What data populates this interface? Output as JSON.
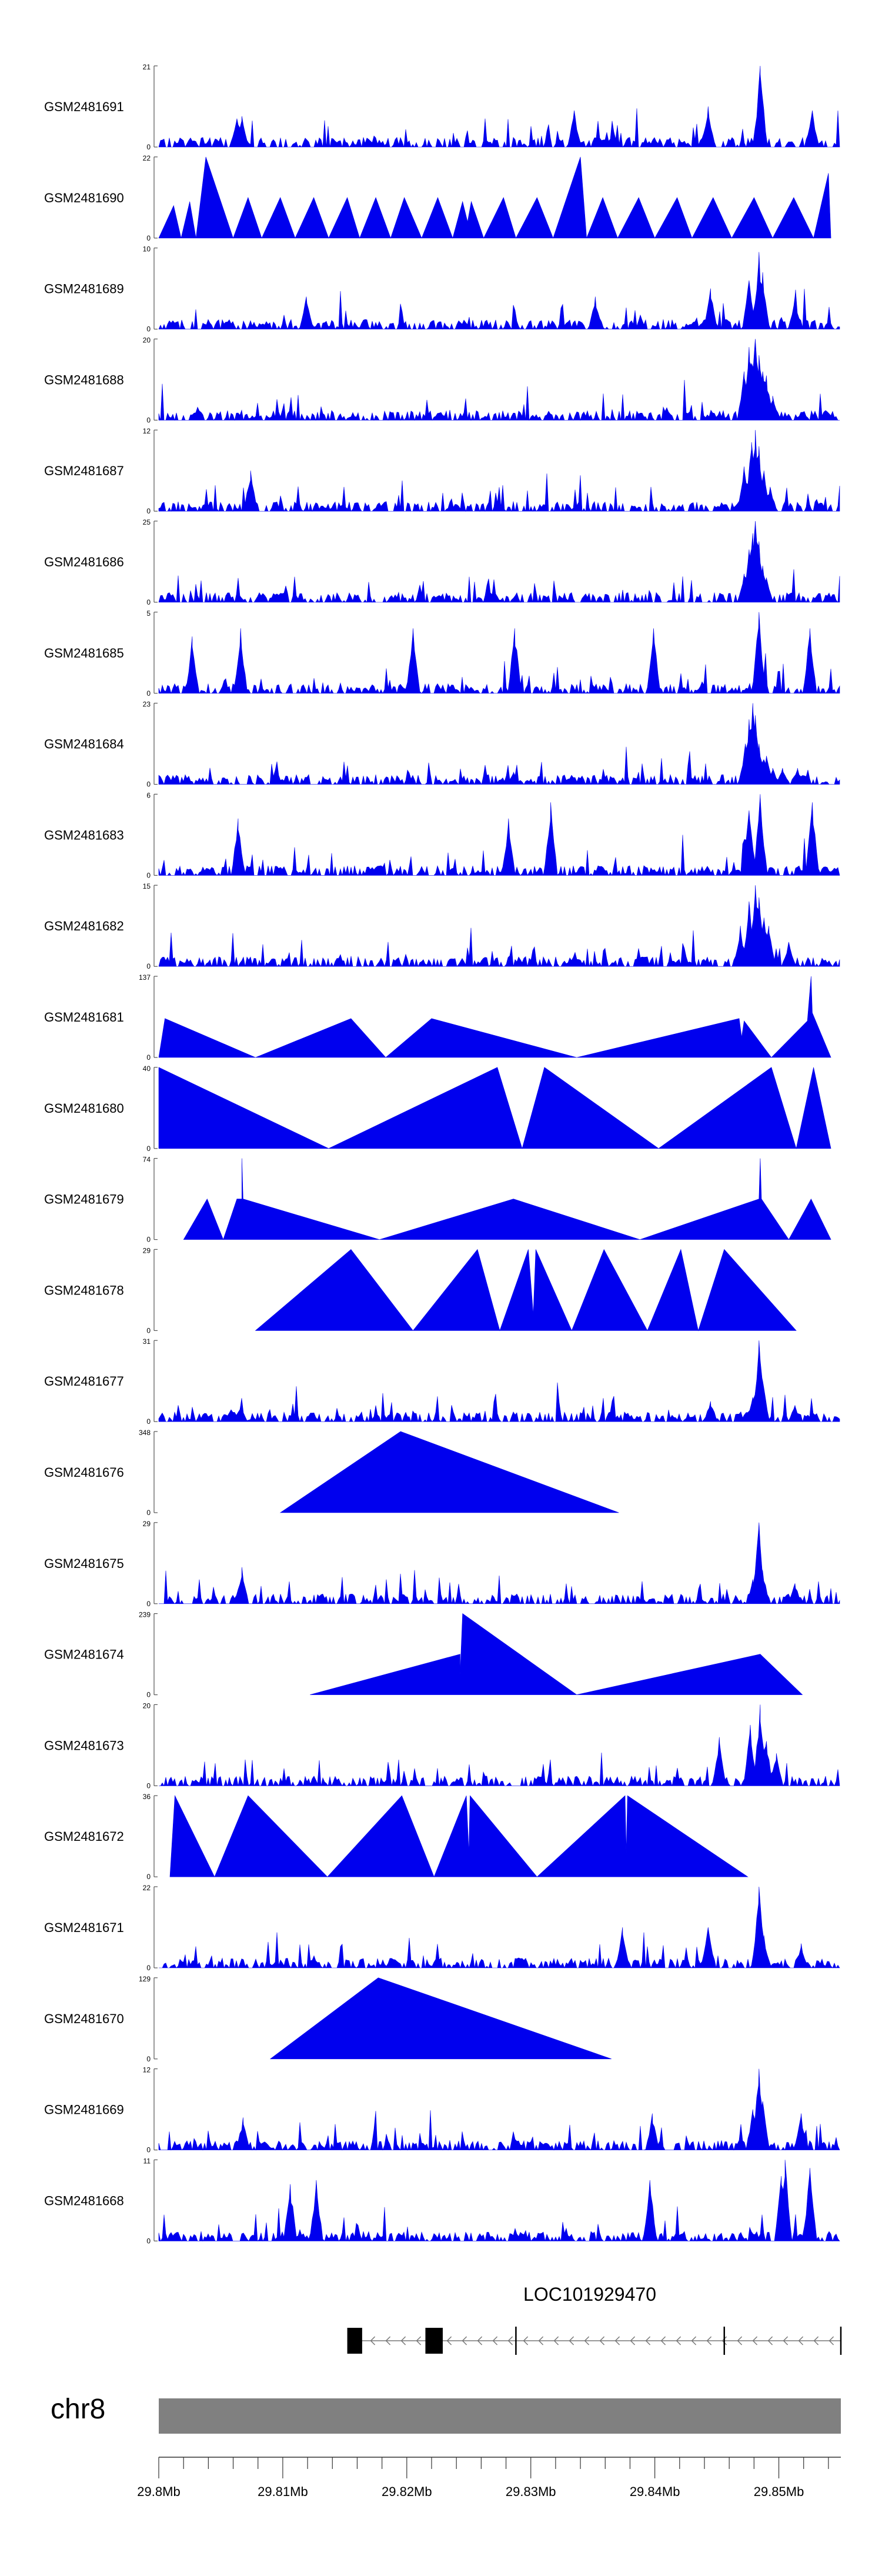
{
  "chart_data": {
    "type": "area",
    "title": "",
    "chromosome": "chr8",
    "gene": "LOC101929470",
    "xlim": [
      29.8,
      29.855
    ],
    "x_ticks": [
      29.8,
      29.81,
      29.82,
      29.83,
      29.84,
      29.85
    ],
    "x_tick_labels": [
      "29.8Mb",
      "29.81Mb",
      "29.82Mb",
      "29.83Mb",
      "29.84Mb",
      "29.85Mb"
    ],
    "tracks": [
      {
        "name": "GSM2481691",
        "ymax": 21,
        "kind": "dense",
        "points": [
          [
            29.8063,
            0.35
          ],
          [
            29.8067,
            0.38
          ],
          [
            29.8335,
            0.45
          ],
          [
            29.8443,
            0.5
          ],
          [
            29.8485,
            1.0
          ],
          [
            29.8527,
            0.45
          ]
        ]
      },
      {
        "name": "GSM2481690",
        "ymax": 22,
        "kind": "sparse",
        "points": [
          [
            29.8,
            0
          ],
          [
            29.8012,
            0.4
          ],
          [
            29.8018,
            0
          ],
          [
            29.8025,
            0.45
          ],
          [
            29.803,
            0
          ],
          [
            29.8038,
            1.0
          ],
          [
            29.806,
            0
          ],
          [
            29.8072,
            0.5
          ],
          [
            29.8083,
            0
          ],
          [
            29.8098,
            0.5
          ],
          [
            29.811,
            0
          ],
          [
            29.8125,
            0.5
          ],
          [
            29.8137,
            0
          ],
          [
            29.8152,
            0.5
          ],
          [
            29.8162,
            0
          ],
          [
            29.8175,
            0.5
          ],
          [
            29.8187,
            0
          ],
          [
            29.8198,
            0.5
          ],
          [
            29.8212,
            0
          ],
          [
            29.8225,
            0.5
          ],
          [
            29.8237,
            0
          ],
          [
            29.8245,
            0.45
          ],
          [
            29.8249,
            0.2
          ],
          [
            29.8252,
            0.45
          ],
          [
            29.8262,
            0
          ],
          [
            29.8278,
            0.5
          ],
          [
            29.8288,
            0
          ],
          [
            29.8305,
            0.5
          ],
          [
            29.8318,
            0
          ],
          [
            29.834,
            1.0
          ],
          [
            29.8345,
            0
          ],
          [
            29.8358,
            0.5
          ],
          [
            29.837,
            0
          ],
          [
            29.8387,
            0.5
          ],
          [
            29.84,
            0
          ],
          [
            29.8418,
            0.5
          ],
          [
            29.843,
            0
          ],
          [
            29.8447,
            0.5
          ],
          [
            29.8462,
            0
          ],
          [
            29.848,
            0.5
          ],
          [
            29.8495,
            0
          ],
          [
            29.8512,
            0.5
          ],
          [
            29.8528,
            0
          ],
          [
            29.854,
            0.8
          ],
          [
            29.8542,
            0
          ]
        ]
      },
      {
        "name": "GSM2481689",
        "ymax": 10,
        "kind": "dense",
        "points": [
          [
            29.8119,
            0.4
          ],
          [
            29.8352,
            0.4
          ],
          [
            29.8445,
            0.5
          ],
          [
            29.8476,
            0.6
          ],
          [
            29.8484,
            0.95
          ],
          [
            29.8487,
            0.7
          ],
          [
            29.8513,
            0.4
          ]
        ]
      },
      {
        "name": "GSM2481688",
        "ymax": 20,
        "kind": "dense",
        "points": [
          [
            29.8472,
            0.6
          ],
          [
            29.8476,
            0.9
          ],
          [
            29.8478,
            0.7
          ],
          [
            29.8481,
            1.0
          ],
          [
            29.8484,
            0.8
          ],
          [
            29.8487,
            0.6
          ],
          [
            29.849,
            0.55
          ],
          [
            29.8495,
            0.3
          ]
        ]
      },
      {
        "name": "GSM2481687",
        "ymax": 12,
        "kind": "dense",
        "points": [
          [
            29.8074,
            0.5
          ],
          [
            29.8472,
            0.55
          ],
          [
            29.8478,
            0.85
          ],
          [
            29.8481,
            1.0
          ],
          [
            29.8484,
            0.8
          ],
          [
            29.8488,
            0.5
          ],
          [
            29.8493,
            0.3
          ]
        ]
      },
      {
        "name": "GSM2481686",
        "ymax": 25,
        "kind": "dense",
        "points": [
          [
            29.8472,
            0.35
          ],
          [
            29.8476,
            0.65
          ],
          [
            29.8479,
            0.85
          ],
          [
            29.8481,
            1.0
          ],
          [
            29.8484,
            0.75
          ],
          [
            29.8487,
            0.45
          ],
          [
            29.849,
            0.3
          ]
        ]
      },
      {
        "name": "GSM2481685",
        "ymax": 5,
        "kind": "dense",
        "points": [
          [
            29.8027,
            0.7
          ],
          [
            29.8066,
            0.8
          ],
          [
            29.8205,
            0.8
          ],
          [
            29.8287,
            0.8
          ],
          [
            29.8399,
            0.8
          ],
          [
            29.8484,
            1.0
          ],
          [
            29.8525,
            0.8
          ]
        ]
      },
      {
        "name": "GSM2481684",
        "ymax": 23,
        "kind": "dense",
        "points": [
          [
            29.8286,
            0.15
          ],
          [
            29.8473,
            0.5
          ],
          [
            29.8476,
            0.8
          ],
          [
            29.8479,
            1.0
          ],
          [
            29.8481,
            0.85
          ],
          [
            29.8484,
            0.5
          ],
          [
            29.849,
            0.35
          ],
          [
            29.8495,
            0.2
          ],
          [
            29.8503,
            0.2
          ],
          [
            29.8515,
            0.2
          ]
        ]
      },
      {
        "name": "GSM2481683",
        "ymax": 6,
        "kind": "dense",
        "points": [
          [
            29.8064,
            0.7
          ],
          [
            29.8282,
            0.7
          ],
          [
            29.8316,
            0.9
          ],
          [
            29.8476,
            0.8
          ],
          [
            29.8485,
            1.0
          ],
          [
            29.8527,
            0.9
          ]
        ]
      },
      {
        "name": "GSM2481682",
        "ymax": 15,
        "kind": "dense",
        "points": [
          [
            29.8469,
            0.5
          ],
          [
            29.8476,
            0.8
          ],
          [
            29.8481,
            1.0
          ],
          [
            29.8484,
            0.85
          ],
          [
            29.8488,
            0.6
          ],
          [
            29.8492,
            0.5
          ],
          [
            29.8508,
            0.3
          ]
        ]
      },
      {
        "name": "GSM2481681",
        "ymax": 137,
        "kind": "sparse",
        "points": [
          [
            29.8,
            0
          ],
          [
            29.8005,
            0.48
          ],
          [
            29.8078,
            0
          ],
          [
            29.8155,
            0.48
          ],
          [
            29.8183,
            0
          ],
          [
            29.822,
            0.48
          ],
          [
            29.8337,
            0
          ],
          [
            29.8468,
            0.48
          ],
          [
            29.847,
            0.25
          ],
          [
            29.8472,
            0.45
          ],
          [
            29.8494,
            0
          ],
          [
            29.8523,
            0.45
          ],
          [
            29.8526,
            1.0
          ],
          [
            29.8527,
            0.55
          ],
          [
            29.8542,
            0
          ]
        ]
      },
      {
        "name": "GSM2481680",
        "ymax": 40,
        "kind": "sparse",
        "points": [
          [
            29.8,
            0
          ],
          [
            29.8,
            1.0
          ],
          [
            29.8137,
            0
          ],
          [
            29.8273,
            1.0
          ],
          [
            29.8293,
            0
          ],
          [
            29.8311,
            1.0
          ],
          [
            29.8403,
            0
          ],
          [
            29.8494,
            1.0
          ],
          [
            29.8514,
            0
          ],
          [
            29.8528,
            1.0
          ],
          [
            29.8542,
            0
          ]
        ]
      },
      {
        "name": "GSM2481679",
        "ymax": 74,
        "kind": "sparse",
        "points": [
          [
            29.802,
            0
          ],
          [
            29.8039,
            0.5
          ],
          [
            29.8052,
            0
          ],
          [
            29.8063,
            0.5
          ],
          [
            29.8067,
            0.5
          ],
          [
            29.8067,
            1.0
          ],
          [
            29.8068,
            0.5
          ],
          [
            29.8178,
            0
          ],
          [
            29.8286,
            0.5
          ],
          [
            29.8388,
            0
          ],
          [
            29.8484,
            0.5
          ],
          [
            29.8485,
            1.0
          ],
          [
            29.8486,
            0.5
          ],
          [
            29.8508,
            0
          ],
          [
            29.8526,
            0.5
          ],
          [
            29.8542,
            0
          ]
        ]
      },
      {
        "name": "GSM2481678",
        "ymax": 29,
        "kind": "sparse",
        "points": [
          [
            29.8078,
            0
          ],
          [
            29.8155,
            1.0
          ],
          [
            29.8205,
            0
          ],
          [
            29.8257,
            1.0
          ],
          [
            29.8275,
            0
          ],
          [
            29.8298,
            1.0
          ],
          [
            29.8302,
            0.2
          ],
          [
            29.8304,
            1.0
          ],
          [
            29.8333,
            0
          ],
          [
            29.8359,
            1.0
          ],
          [
            29.8394,
            0
          ],
          [
            29.8421,
            1.0
          ],
          [
            29.8435,
            0
          ],
          [
            29.8456,
            1.0
          ],
          [
            29.8514,
            0
          ]
        ]
      },
      {
        "name": "GSM2481677",
        "ymax": 31,
        "kind": "dense",
        "points": [
          [
            29.8066,
            0.2
          ],
          [
            29.8445,
            0.25
          ],
          [
            29.8479,
            0.3
          ],
          [
            29.8484,
            1.0
          ],
          [
            29.8487,
            0.5
          ],
          [
            29.8513,
            0.2
          ]
        ]
      },
      {
        "name": "GSM2481676",
        "ymax": 348,
        "kind": "sparse",
        "points": [
          [
            29.8098,
            0
          ],
          [
            29.8195,
            1.0
          ],
          [
            29.8371,
            0
          ]
        ]
      },
      {
        "name": "GSM2481675",
        "ymax": 29,
        "kind": "dense",
        "points": [
          [
            29.8067,
            0.45
          ],
          [
            29.8479,
            0.3
          ],
          [
            29.8484,
            1.0
          ],
          [
            29.8487,
            0.4
          ],
          [
            29.8513,
            0.25
          ]
        ]
      },
      {
        "name": "GSM2481674",
        "ymax": 239,
        "kind": "sparse",
        "points": [
          [
            29.8122,
            0
          ],
          [
            29.8243,
            0.5
          ],
          [
            29.8243,
            0.25
          ],
          [
            29.8245,
            1.0
          ],
          [
            29.8337,
            0
          ],
          [
            29.8485,
            0.5
          ],
          [
            29.8519,
            0
          ]
        ]
      },
      {
        "name": "GSM2481673",
        "ymax": 20,
        "kind": "dense",
        "points": [
          [
            29.8452,
            0.6
          ],
          [
            29.8477,
            0.75
          ],
          [
            29.8485,
            1.0
          ],
          [
            29.849,
            0.55
          ],
          [
            29.8498,
            0.4
          ]
        ]
      },
      {
        "name": "GSM2481672",
        "ymax": 36,
        "kind": "sparse",
        "points": [
          [
            29.8009,
            0
          ],
          [
            29.8013,
            1.0
          ],
          [
            29.8045,
            0
          ],
          [
            29.8072,
            1.0
          ],
          [
            29.8136,
            0
          ],
          [
            29.8196,
            1.0
          ],
          [
            29.8222,
            0
          ],
          [
            29.8248,
            1.0
          ],
          [
            29.825,
            0.3
          ],
          [
            29.8251,
            1.0
          ],
          [
            29.8305,
            0
          ],
          [
            29.8376,
            1.0
          ],
          [
            29.8377,
            0.3
          ],
          [
            29.8378,
            1.0
          ],
          [
            29.8475,
            0
          ]
        ]
      },
      {
        "name": "GSM2481671",
        "ymax": 22,
        "kind": "dense",
        "points": [
          [
            29.8374,
            0.5
          ],
          [
            29.8443,
            0.5
          ],
          [
            29.8484,
            1.0
          ],
          [
            29.8488,
            0.4
          ],
          [
            29.8518,
            0.3
          ]
        ]
      },
      {
        "name": "GSM2481670",
        "ymax": 129,
        "kind": "sparse",
        "points": [
          [
            29.809,
            0
          ],
          [
            29.8177,
            1.0
          ],
          [
            29.8365,
            0
          ]
        ]
      },
      {
        "name": "GSM2481669",
        "ymax": 12,
        "kind": "dense",
        "points": [
          [
            29.8068,
            0.4
          ],
          [
            29.8398,
            0.45
          ],
          [
            29.8479,
            0.5
          ],
          [
            29.8484,
            1.0
          ],
          [
            29.8487,
            0.6
          ],
          [
            29.8518,
            0.45
          ]
        ]
      },
      {
        "name": "GSM2481668",
        "ymax": 11,
        "kind": "dense",
        "points": [
          [
            29.8106,
            0.7
          ],
          [
            29.8127,
            0.75
          ],
          [
            29.8396,
            0.75
          ],
          [
            29.8502,
            0.8
          ],
          [
            29.8505,
            1.0
          ],
          [
            29.8525,
            0.9
          ]
        ]
      }
    ],
    "gene_model": {
      "start": 29.8152,
      "end": 29.855,
      "exons": [
        [
          29.8152,
          29.8164
        ],
        [
          29.8215,
          29.8229
        ]
      ],
      "marks": [
        29.8288,
        29.8456,
        29.855
      ],
      "strand": "-"
    }
  }
}
